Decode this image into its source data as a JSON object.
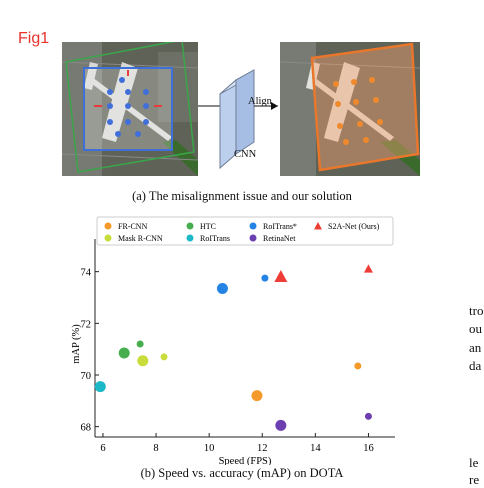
{
  "figure_label": "Fig1",
  "panel_a": {
    "arrow_label": "Align",
    "block_label": "CNN",
    "caption": "(a) The misalignment issue and our solution"
  },
  "panel_b_caption": "(b) Speed vs. accuracy (mAP) on DOTA",
  "side_text": [
    "tro",
    "ou",
    "an",
    "da",
    "le",
    "re"
  ],
  "colors": {
    "fr_cnn": "#f39a2b",
    "mask_rcnn": "#c8dc3c",
    "htc": "#46ae4f",
    "roitrans": "#1db8c8",
    "roitrans_star": "#2583e6",
    "retinanet": "#6b3fb0",
    "s2anet": "#ee3d36",
    "fig_label": "#e8332d"
  },
  "chart_data": {
    "type": "scatter",
    "xlabel": "Speed (FPS)",
    "ylabel": "mAP (%)",
    "xlim": [
      5.7,
      17.0
    ],
    "ylim": [
      67.6,
      74.8
    ],
    "xticks": [
      6,
      8,
      10,
      12,
      14,
      16
    ],
    "yticks": [
      68,
      70,
      72,
      74
    ],
    "legend_position": "top",
    "series": [
      {
        "name": "FR-CNN",
        "color_key": "fr_cnn",
        "points": [
          [
            11.8,
            69.2,
            "large"
          ],
          [
            15.6,
            70.35,
            "small"
          ]
        ]
      },
      {
        "name": "Mask R-CNN",
        "color_key": "mask_rcnn",
        "points": [
          [
            7.5,
            70.55,
            "large"
          ],
          [
            8.3,
            70.7,
            "small"
          ]
        ]
      },
      {
        "name": "HTC",
        "color_key": "htc",
        "points": [
          [
            6.8,
            70.85,
            "large"
          ],
          [
            7.4,
            71.2,
            "small"
          ]
        ]
      },
      {
        "name": "RoITrans",
        "color_key": "roitrans",
        "points": [
          [
            5.9,
            69.55,
            "large"
          ]
        ]
      },
      {
        "name": "RoITrans*",
        "color_key": "roitrans_star",
        "points": [
          [
            10.5,
            73.35,
            "large"
          ],
          [
            12.1,
            73.75,
            "small"
          ]
        ]
      },
      {
        "name": "RetinaNet",
        "color_key": "retinanet",
        "points": [
          [
            12.7,
            68.05,
            "large"
          ],
          [
            16.0,
            68.4,
            "small"
          ]
        ]
      },
      {
        "name": "S2A-Net (Ours)",
        "color_key": "s2anet",
        "marker": "triangle",
        "points": [
          [
            12.7,
            73.8,
            "large"
          ],
          [
            16.0,
            74.1,
            "small"
          ]
        ]
      }
    ]
  }
}
